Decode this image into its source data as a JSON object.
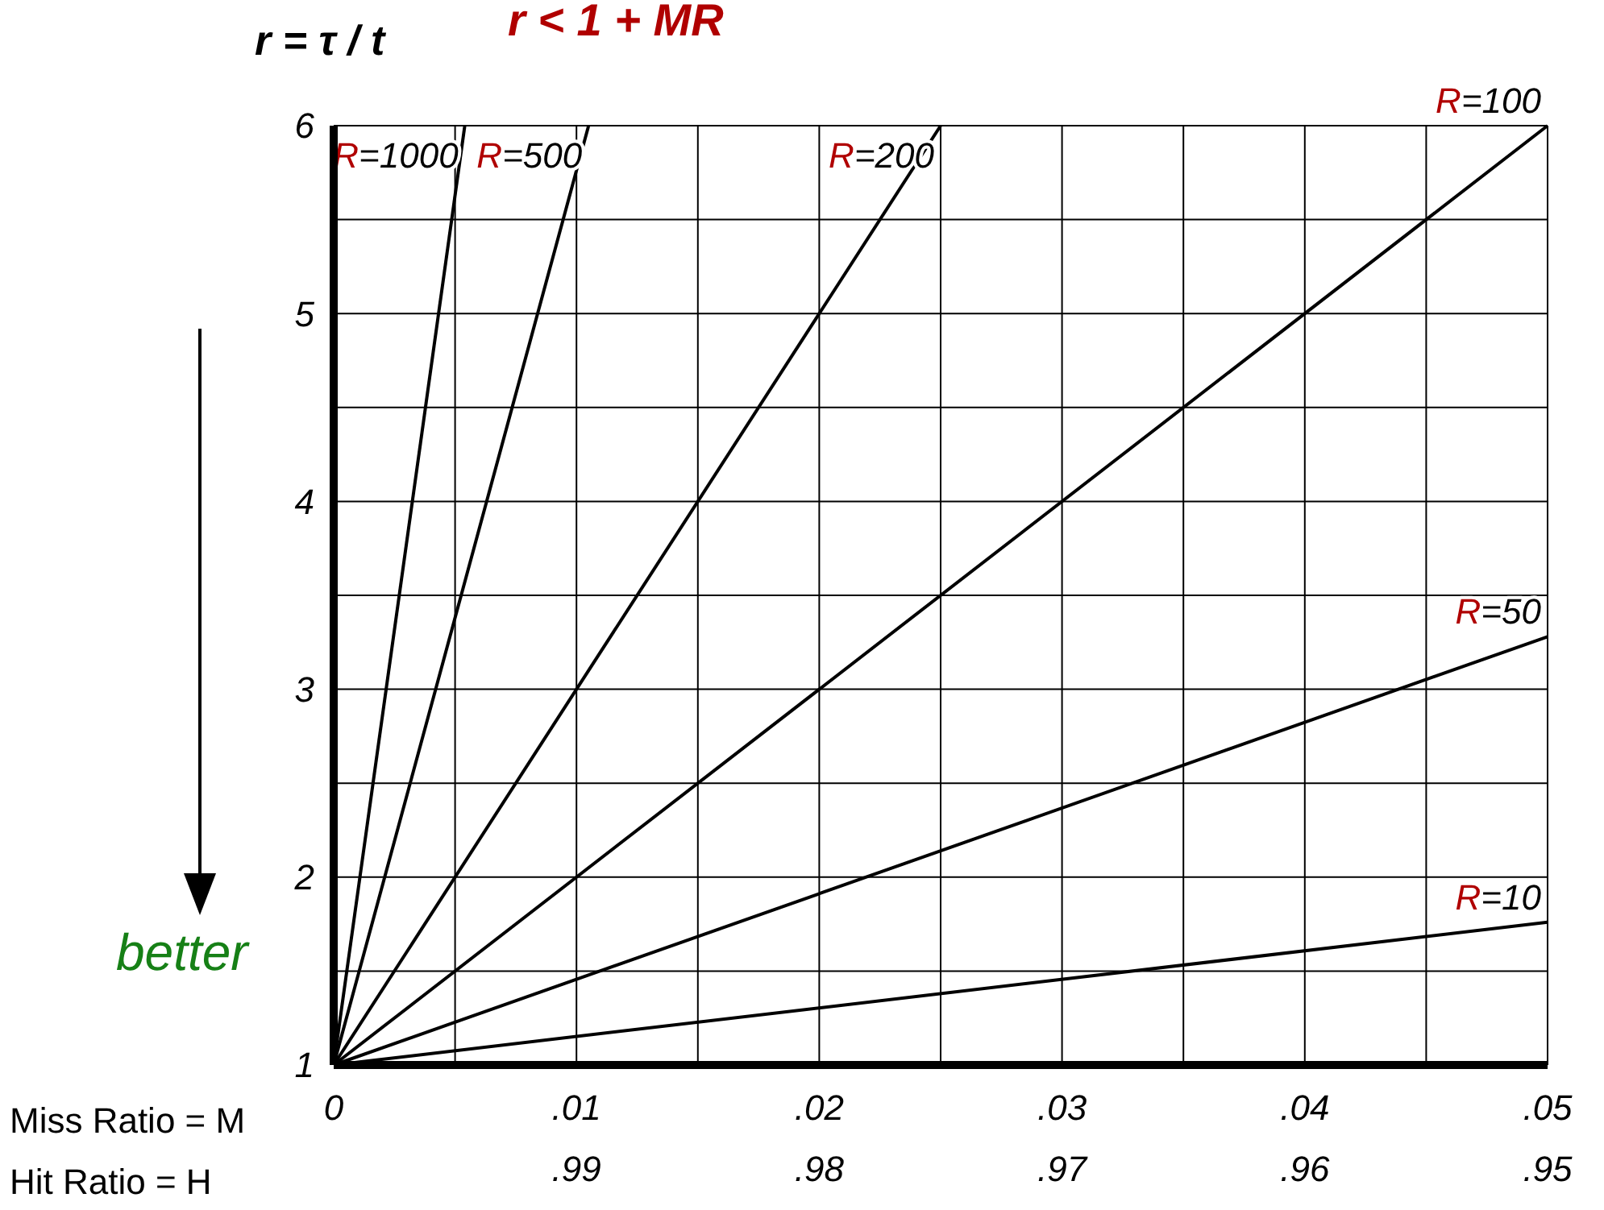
{
  "chart_data": {
    "type": "line",
    "title": "r < 1 + MR",
    "ylabel": "r = τ / t",
    "xlabel": "Miss  Ratio = M",
    "x2label": "Hit    Ratio = H",
    "xlim": [
      0,
      0.05
    ],
    "xticks": [
      {
        "value": 0,
        "label": "0"
      },
      {
        "value": 0.005,
        "label": null
      },
      {
        "value": 0.01,
        "label": ".01"
      },
      {
        "value": 0.015,
        "label": null
      },
      {
        "value": 0.02,
        "label": ".02"
      },
      {
        "value": 0.025,
        "label": null
      },
      {
        "value": 0.03,
        "label": ".03"
      },
      {
        "value": 0.035,
        "label": null
      },
      {
        "value": 0.04,
        "label": ".04"
      },
      {
        "value": 0.045,
        "label": null
      },
      {
        "value": 0.05,
        "label": ".05"
      }
    ],
    "x2lim": [
      1,
      0.95
    ],
    "x2ticks": [
      {
        "value": 0.99,
        "label": ".99"
      },
      {
        "value": 0.98,
        "label": ".98"
      },
      {
        "value": 0.97,
        "label": ".97"
      },
      {
        "value": 0.96,
        "label": ".96"
      },
      {
        "value": 0.95,
        "label": ".95"
      }
    ],
    "ylim": [
      1,
      6
    ],
    "yticks": [
      1,
      {
        "value": 1.5,
        "label": null
      },
      2,
      {
        "value": 2.5,
        "label": null
      },
      3,
      {
        "value": 3.5,
        "label": null
      },
      4,
      {
        "value": 4.5,
        "label": null
      },
      5,
      {
        "value": 5.5,
        "label": null
      },
      6
    ],
    "grid": true,
    "marker": "none",
    "line_style": "solid",
    "annotations": [
      "better"
    ],
    "series": [
      {
        "name": "R=1000",
        "color": "#000000",
        "x": [
          0,
          0.0054
        ],
        "values": [
          1,
          6
        ]
      },
      {
        "name": "R=500",
        "color": "#000000",
        "x": [
          0,
          0.0105
        ],
        "values": [
          1,
          6
        ]
      },
      {
        "name": "R=200",
        "color": "#000000",
        "x": [
          0,
          0.025
        ],
        "values": [
          1,
          6
        ]
      },
      {
        "name": "R=100",
        "color": "#000000",
        "x": [
          0,
          0.05
        ],
        "values": [
          1,
          6
        ]
      },
      {
        "name": "R=50",
        "color": "#000000",
        "x": [
          0,
          0.05
        ],
        "values": [
          1,
          3.28
        ]
      },
      {
        "name": "R=10",
        "color": "#000000",
        "x": [
          0,
          0.05
        ],
        "values": [
          1,
          1.76
        ]
      }
    ]
  }
}
